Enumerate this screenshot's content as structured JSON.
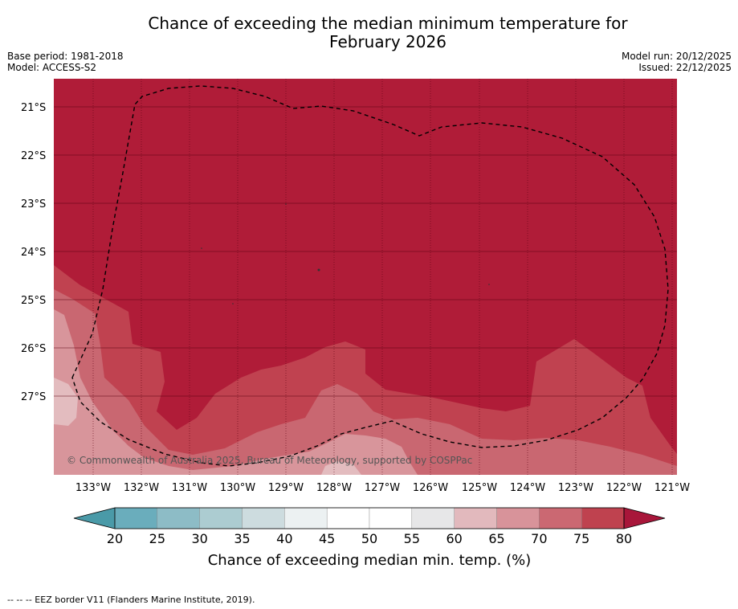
{
  "header": {
    "title_line1": "Chance of exceeding the median minimum temperature for",
    "title_line2": "February 2026",
    "base_period": "Base period: 1981-2018",
    "model": "Model: ACCESS-S2",
    "model_run": "Model run: 20/12/2025",
    "issued": "Issued: 22/12/2025"
  },
  "map": {
    "copyright": "© Commonwealth of Australia 2025, Bureau of Meteorology, supported by COSPPac",
    "latitude_labels": [
      "21°S",
      "22°S",
      "23°S",
      "24°S",
      "25°S",
      "26°S",
      "27°S"
    ],
    "longitude_labels": [
      "133°W",
      "132°W",
      "131°W",
      "130°W",
      "129°W",
      "128°W",
      "127°W",
      "126°W",
      "125°W",
      "124°W",
      "123°W",
      "122°W",
      "121°W"
    ],
    "region_colors": {
      "above_80": "#b01c38",
      "75_80": "#c04250",
      "70_75": "#c96771",
      "65_70": "#d8959b",
      "60_65": "#e3bcbf"
    },
    "boundary_style": "dashed black"
  },
  "colorbar": {
    "title": "Chance of exceeding median min. temp. (%)",
    "ticks": [
      "20",
      "25",
      "30",
      "35",
      "40",
      "45",
      "50",
      "55",
      "60",
      "65",
      "70",
      "75",
      "80"
    ],
    "under_color": "#4a9aa8",
    "over_color": "#a8163a",
    "segment_colors": [
      "#6aadbc",
      "#8dbcc6",
      "#acccd1",
      "#cddcdf",
      "#ecf1f2",
      "#ffffff",
      "#ffffff",
      "#e7e7e8",
      "#e2b9bd",
      "#d8939a",
      "#cb6872",
      "#bf424f"
    ]
  },
  "footnote": "--  --  -- EEZ border V11 (Flanders Marine Institute, 2019)."
}
